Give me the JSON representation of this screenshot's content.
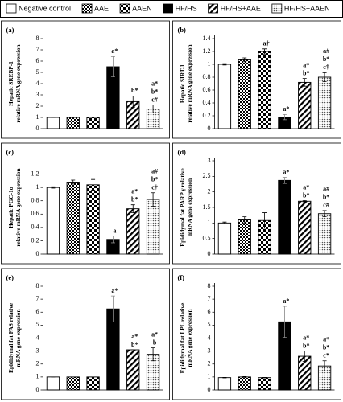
{
  "legend": {
    "items": [
      {
        "name": "Negative control",
        "color": "#ffffff",
        "pattern": "none"
      },
      {
        "name": "AAE",
        "color": "#ffffff",
        "pattern": "checker-small"
      },
      {
        "name": "AAEN",
        "color": "#ffffff",
        "pattern": "checker-large"
      },
      {
        "name": "HF/HS",
        "color": "#000000",
        "pattern": "none"
      },
      {
        "name": "HF/HS+AAE",
        "color": "#ffffff",
        "pattern": "stripes"
      },
      {
        "name": "HF/HS+AAEN",
        "color": "#ffffff",
        "pattern": "dots"
      }
    ]
  },
  "chart_data": [
    {
      "type": "bar",
      "label": "(a)",
      "ylabel": [
        "Hepatic SREBP-1",
        "relative mRNA gene expression"
      ],
      "values": [
        1,
        1,
        1,
        5.5,
        2.4,
        1.75
      ],
      "errors": [
        0,
        0,
        0,
        0.9,
        0.5,
        0.35
      ],
      "annotations": [
        [],
        [],
        [],
        [
          "a*"
        ],
        [
          "b*"
        ],
        [
          "a*",
          "b*",
          "c#"
        ]
      ],
      "ylim": [
        0,
        8
      ],
      "yticks": [
        0,
        1,
        2,
        3,
        4,
        5,
        6,
        7,
        8
      ]
    },
    {
      "type": "bar",
      "label": "(b)",
      "ylabel": [
        "Hepatic SIRT-1",
        "relative mRNA gene expression"
      ],
      "values": [
        1.0,
        1.07,
        1.2,
        0.18,
        0.72,
        0.8
      ],
      "errors": [
        0.01,
        0.03,
        0.04,
        0.04,
        0.06,
        0.07
      ],
      "annotations": [
        [],
        [],
        [
          "a†"
        ],
        [
          "a*"
        ],
        [
          "a*",
          "b*"
        ],
        [
          "a#",
          "b*",
          "c†"
        ]
      ],
      "ylim": [
        0,
        1.4
      ],
      "yticks": [
        0,
        0.2,
        0.4,
        0.6,
        0.8,
        1,
        1.2,
        1.4
      ]
    },
    {
      "type": "bar",
      "label": "(c)",
      "ylabel": [
        "Hepatic PGC-1α",
        "relative mRNA gene expression"
      ],
      "values": [
        1.0,
        1.08,
        1.04,
        0.22,
        0.68,
        0.82
      ],
      "errors": [
        0.01,
        0.03,
        0.08,
        0.05,
        0.06,
        0.1
      ],
      "annotations": [
        [],
        [],
        [],
        [
          "a"
        ],
        [
          "a*",
          "b*"
        ],
        [
          "a#",
          "b*",
          "c†"
        ]
      ],
      "ylim": [
        0,
        1.4
      ],
      "yticks": [
        0,
        0.2,
        0.4,
        0.6,
        0.8,
        1,
        1.2
      ]
    },
    {
      "type": "bar",
      "label": "(d)",
      "ylabel": [
        "Epididymal fat PARP γ relative",
        "mRNA gene expression"
      ],
      "values": [
        1.0,
        1.1,
        1.08,
        2.37,
        1.7,
        1.3
      ],
      "errors": [
        0.03,
        0.1,
        0.25,
        0.1,
        0.02,
        0.1
      ],
      "annotations": [
        [],
        [],
        [],
        [
          "a*"
        ],
        [
          "a*",
          "b*"
        ],
        [
          "a#",
          "b*",
          "c#"
        ]
      ],
      "ylim": [
        0,
        3
      ],
      "yticks": [
        0,
        0.5,
        1,
        1.5,
        2,
        2.5,
        3
      ]
    },
    {
      "type": "bar",
      "label": "(e)",
      "ylabel": [
        "Epididymal fat FAS relative",
        "mRNA gene expression"
      ],
      "values": [
        1,
        1,
        1,
        6.25,
        3.1,
        2.75
      ],
      "errors": [
        0,
        0,
        0,
        1,
        0,
        0.5
      ],
      "annotations": [
        [],
        [],
        [],
        [
          "a*"
        ],
        [
          "a*",
          "b*"
        ],
        [
          "a*",
          "b"
        ]
      ],
      "ylim": [
        0,
        8
      ],
      "yticks": [
        0,
        1,
        2,
        3,
        4,
        5,
        6,
        7,
        8
      ]
    },
    {
      "type": "bar",
      "label": "(f)",
      "ylabel": [
        "Epididymal fat LPL relative",
        "mRNA gene expression"
      ],
      "values": [
        0.95,
        1.0,
        0.95,
        5.25,
        2.6,
        1.85
      ],
      "errors": [
        0.02,
        0.03,
        0.02,
        1.2,
        0.4,
        0.4
      ],
      "annotations": [
        [],
        [],
        [],
        [
          "a*"
        ],
        [
          "a*",
          "b*"
        ],
        [
          "a*",
          "b*",
          "c*"
        ]
      ],
      "ylim": [
        0,
        8
      ],
      "yticks": [
        0,
        1,
        2,
        3,
        4,
        5,
        6,
        7,
        8
      ]
    }
  ]
}
